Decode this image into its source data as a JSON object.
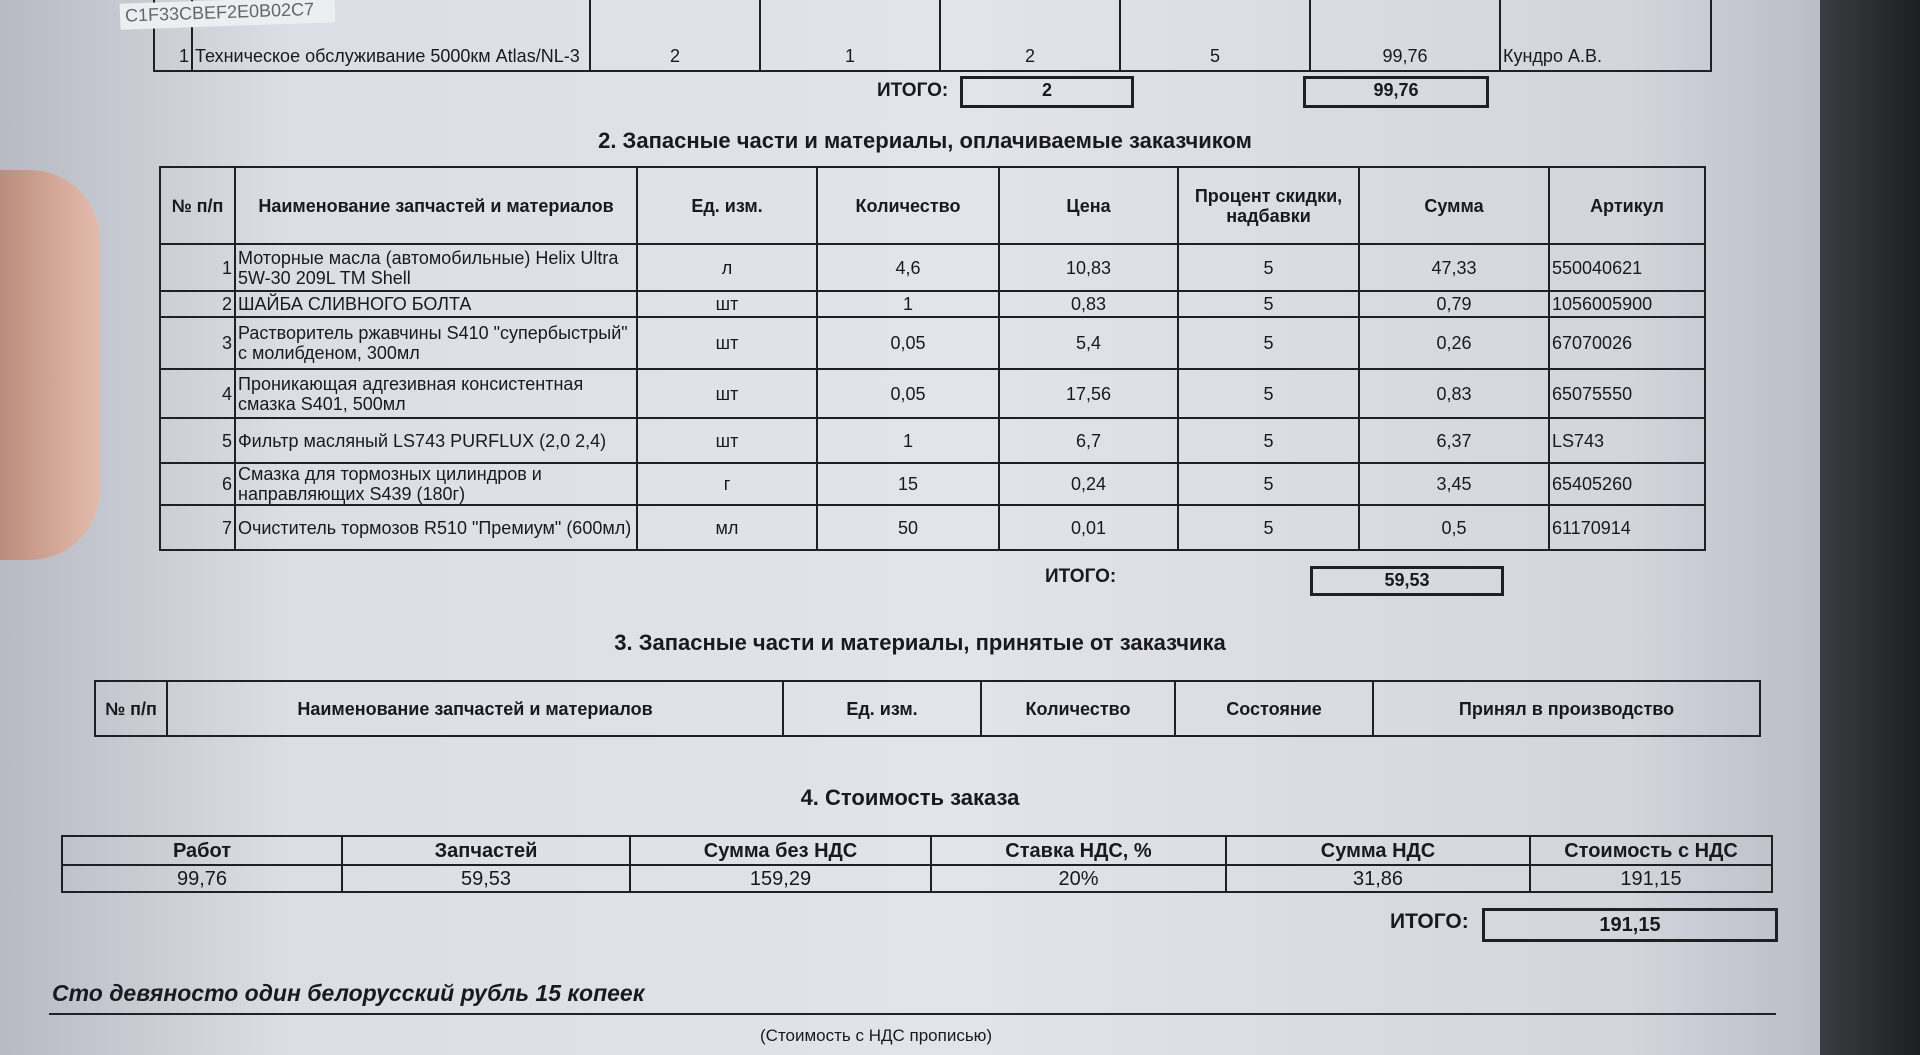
{
  "stamp_code": "C1F33CBEF2E0B02C7",
  "section1_tail": {
    "row": {
      "num": "1",
      "name": "Техническое обслуживание 5000км Atlas/NL-3",
      "c1": "2",
      "c2": "1",
      "c3": "2",
      "c4": "5",
      "sum": "99,76",
      "worker": "Кундро А.В."
    },
    "total_label": "ИТОГО:",
    "total_qty": "2",
    "total_sum": "99,76"
  },
  "section2": {
    "title": "2. Запасные части и материалы, оплачиваемые заказчиком",
    "headers": [
      "№ п/п",
      "Наименование запчастей и материалов",
      "Ед. изм.",
      "Количество",
      "Цена",
      "Процент скидки, надбавки",
      "Сумма",
      "Артикул"
    ],
    "rows": [
      [
        "1",
        "Моторные масла (автомобильные) Helix Ultra 5W-30 209L TM Shell",
        "л",
        "4,6",
        "10,83",
        "5",
        "47,33",
        "550040621"
      ],
      [
        "2",
        "ШАЙБА СЛИВНОГО БОЛТА",
        "шт",
        "1",
        "0,83",
        "5",
        "0,79",
        "1056005900"
      ],
      [
        "3",
        "Растворитель ржавчины S410 \"супербыстрый\" с молибденом, 300мл",
        "шт",
        "0,05",
        "5,4",
        "5",
        "0,26",
        "67070026"
      ],
      [
        "4",
        "Проникающая адгезивная консистентная смазка S401, 500мл",
        "шт",
        "0,05",
        "17,56",
        "5",
        "0,83",
        "65075550"
      ],
      [
        "5",
        "Фильтр масляный LS743 PURFLUX (2,0 2,4)",
        "шт",
        "1",
        "6,7",
        "5",
        "6,37",
        "LS743"
      ],
      [
        "6",
        "Смазка для тормозных цилиндров и направляющих S439 (180г)",
        "г",
        "15",
        "0,24",
        "5",
        "3,45",
        "65405260"
      ],
      [
        "7",
        "Очиститель тормозов R510 \"Премиум\" (600мл)",
        "мл",
        "50",
        "0,01",
        "5",
        "0,5",
        "61170914"
      ]
    ],
    "total_label": "ИТОГО:",
    "total_sum": "59,53"
  },
  "section3": {
    "title": "3. Запасные части и материалы, принятые от заказчика",
    "headers": [
      "№ п/п",
      "Наименование запчастей и материалов",
      "Ед. изм.",
      "Количество",
      "Состояние",
      "Принял в производство"
    ]
  },
  "section4": {
    "title": "4. Стоимость заказа",
    "headers": [
      "Работ",
      "Запчастей",
      "Сумма без НДС",
      "Ставка НДС, %",
      "Сумма НДС",
      "Стоимость с НДС"
    ],
    "values": [
      "99,76",
      "59,53",
      "159,29",
      "20%",
      "31,86",
      "191,15"
    ],
    "total_label": "ИТОГО:",
    "total": "191,15"
  },
  "amount_words": "Сто девяносто один белорусский рубль 15 копеек",
  "amount_words_caption": "(Стоимость с НДС прописью)"
}
